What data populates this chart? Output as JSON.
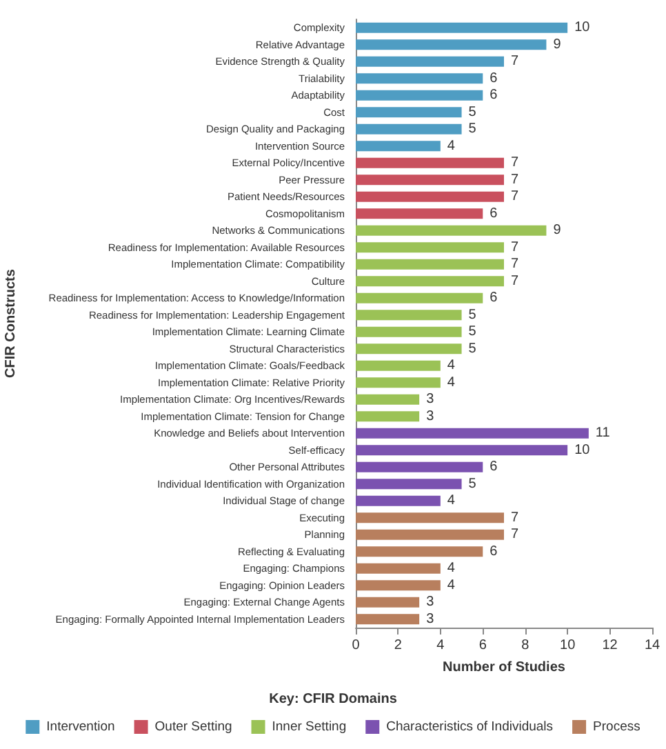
{
  "chart_data": {
    "type": "bar",
    "orientation": "horizontal",
    "xlabel": "Number of Studies",
    "ylabel": "CFIR Constructs",
    "legend_title": "Key: CFIR Domains",
    "legend": "bottom",
    "grid": false,
    "data_labels": true,
    "xlim": [
      0,
      14
    ],
    "xticks": [
      0,
      2,
      4,
      6,
      8,
      10,
      12,
      14
    ],
    "categories": [
      "Complexity",
      "Relative Advantage",
      "Evidence Strength & Quality",
      "Trialability",
      "Adaptability",
      "Cost",
      "Design Quality and Packaging",
      "Intervention Source",
      "External Policy/Incentive",
      "Peer Pressure",
      "Patient Needs/Resources",
      "Cosmopolitanism",
      "Networks & Communications",
      "Readiness for Implementation: Available Resources",
      "Implementation Climate: Compatibility",
      "Culture",
      "Readiness for Implementation: Access to Knowledge/Information",
      "Readiness for Implementation: Leadership Engagement",
      "Implementation Climate: Learning Climate",
      "Structural Characteristics",
      "Implementation Climate: Goals/Feedback",
      "Implementation Climate: Relative Priority",
      "Implementation Climate: Org Incentives/Rewards",
      "Implementation Climate: Tension for Change",
      "Knowledge and Beliefs about Intervention",
      "Self-efficacy",
      "Other Personal Attributes",
      "Individual Identification with Organization",
      "Individual Stage of change",
      "Executing",
      "Planning",
      "Reflecting & Evaluating",
      "Engaging: Champions",
      "Engaging: Opinion Leaders",
      "Engaging: External Change Agents",
      "Engaging: Formally Appointed Internal Implementation Leaders"
    ],
    "series": [
      {
        "name": "Intervention",
        "color": "#4f9dc3",
        "values": [
          10,
          9,
          7,
          6,
          6,
          5,
          5,
          4,
          null,
          null,
          null,
          null,
          null,
          null,
          null,
          null,
          null,
          null,
          null,
          null,
          null,
          null,
          null,
          null,
          null,
          null,
          null,
          null,
          null,
          null,
          null,
          null,
          null,
          null,
          null,
          null
        ]
      },
      {
        "name": "Outer Setting",
        "color": "#c9505e",
        "values": [
          null,
          null,
          null,
          null,
          null,
          null,
          null,
          null,
          7,
          7,
          7,
          6,
          null,
          null,
          null,
          null,
          null,
          null,
          null,
          null,
          null,
          null,
          null,
          null,
          null,
          null,
          null,
          null,
          null,
          null,
          null,
          null,
          null,
          null,
          null,
          null
        ]
      },
      {
        "name": "Inner Setting",
        "color": "#9bc256",
        "values": [
          null,
          null,
          null,
          null,
          null,
          null,
          null,
          null,
          null,
          null,
          null,
          null,
          9,
          7,
          7,
          7,
          6,
          5,
          5,
          5,
          4,
          4,
          3,
          3,
          null,
          null,
          null,
          null,
          null,
          null,
          null,
          null,
          null,
          null,
          null,
          null
        ]
      },
      {
        "name": "Characteristics of Individuals",
        "color": "#7b52b0",
        "values": [
          null,
          null,
          null,
          null,
          null,
          null,
          null,
          null,
          null,
          null,
          null,
          null,
          null,
          null,
          null,
          null,
          null,
          null,
          null,
          null,
          null,
          null,
          null,
          null,
          11,
          10,
          6,
          5,
          4,
          null,
          null,
          null,
          null,
          null,
          null,
          null
        ]
      },
      {
        "name": "Process",
        "color": "#b87f5e",
        "values": [
          null,
          null,
          null,
          null,
          null,
          null,
          null,
          null,
          null,
          null,
          null,
          null,
          null,
          null,
          null,
          null,
          null,
          null,
          null,
          null,
          null,
          null,
          null,
          null,
          null,
          null,
          null,
          null,
          null,
          7,
          7,
          6,
          4,
          4,
          3,
          3
        ]
      }
    ]
  }
}
